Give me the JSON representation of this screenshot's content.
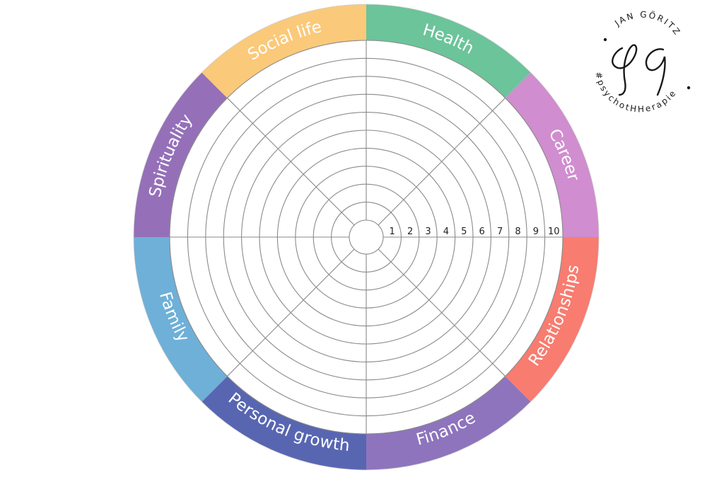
{
  "wheel": {
    "segments": [
      {
        "label": "Health",
        "color": "#6cc49a"
      },
      {
        "label": "Career",
        "color": "#d08dcf"
      },
      {
        "label": "Relationships",
        "color": "#f87c70"
      },
      {
        "label": "Finance",
        "color": "#8e74bd"
      },
      {
        "label": "Personal growth",
        "color": "#5866b2"
      },
      {
        "label": "Family",
        "color": "#6eb0d8"
      },
      {
        "label": "Spirituality",
        "color": "#9570b9"
      },
      {
        "label": "Social life",
        "color": "#fbc97a"
      }
    ],
    "scale": [
      "1",
      "2",
      "3",
      "4",
      "5",
      "6",
      "7",
      "8",
      "9",
      "10"
    ]
  },
  "logo": {
    "name": "JAN GÖRITZ",
    "tagline": "#psychotHHerapie",
    "monogram": "JG"
  }
}
